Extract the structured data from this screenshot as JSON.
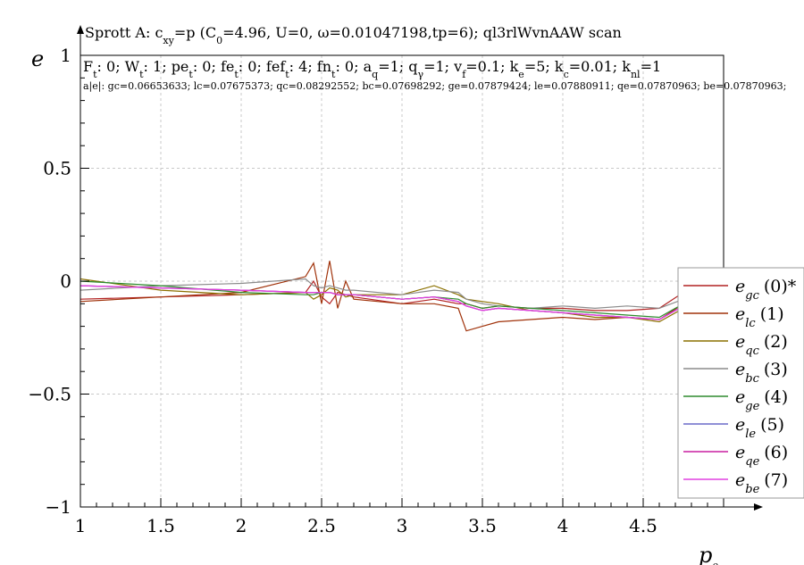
{
  "chart_data": {
    "type": "line",
    "title_parts": [
      "Sprott A: c",
      "xy",
      "=p (C",
      "0",
      "=4.96, U=0, ω=0.01047198,tp=6); ql3rlWvnAAW scan"
    ],
    "params_line": [
      [
        "F",
        "t",
        ": 0; "
      ],
      [
        "W",
        "t",
        ": 1; "
      ],
      [
        "pe",
        "t",
        ": 0; "
      ],
      [
        "fe",
        "t",
        ": 0; "
      ],
      [
        "fef",
        "t",
        ": 4; "
      ],
      [
        "fn",
        "t",
        ": 0; "
      ],
      [
        "a",
        "q",
        "=1; "
      ],
      [
        "q",
        "γ",
        "=1; "
      ],
      [
        "v",
        "f",
        "=0.1; "
      ],
      [
        "k",
        "e",
        "=5; "
      ],
      [
        "k",
        "c",
        "=0.01; "
      ],
      [
        "k",
        "nl",
        "=1"
      ]
    ],
    "errors_line": "a|e|: gc=0.06653633; lc=0.07675373; qc=0.08292552; bc=0.07698292; ge=0.07879424; le=0.07880911; qe=0.07870963; be=0.07870963;",
    "xlabel": "p",
    "xlabel_sub": "o",
    "ylabel": "e",
    "xlim": [
      1,
      5
    ],
    "ylim": [
      -1,
      1
    ],
    "xticks": [
      1,
      1.5,
      2,
      2.5,
      3,
      3.5,
      4,
      4.5
    ],
    "xtick_labels": [
      "1",
      "1.5",
      "2",
      "2.5",
      "3",
      "3.5",
      "4",
      "4.5"
    ],
    "yticks": [
      -1,
      -0.5,
      0,
      0.5,
      1
    ],
    "ytick_labels": [
      "−1",
      "−0.5",
      "0",
      "0.5",
      "1"
    ],
    "grid": true,
    "legend_position": "right",
    "x": [
      1.0,
      1.5,
      2.0,
      2.4,
      2.45,
      2.5,
      2.55,
      2.6,
      2.65,
      2.7,
      3.0,
      3.2,
      3.35,
      3.4,
      3.5,
      3.6,
      3.8,
      4.0,
      4.2,
      4.4,
      4.6,
      4.75
    ],
    "series": [
      {
        "name": "gc",
        "label": "(0)*",
        "color": "#b22222",
        "values": [
          -0.08,
          -0.07,
          -0.06,
          -0.05,
          0.0,
          -0.07,
          -0.1,
          -0.05,
          -0.06,
          -0.07,
          -0.1,
          -0.08,
          -0.1,
          -0.1,
          -0.12,
          -0.11,
          -0.12,
          -0.12,
          -0.13,
          -0.13,
          -0.12,
          -0.05
        ]
      },
      {
        "name": "lc",
        "label": "(1)",
        "color": "#a0320a",
        "values": [
          -0.09,
          -0.07,
          -0.05,
          0.02,
          0.08,
          -0.1,
          0.09,
          -0.12,
          0.0,
          -0.08,
          -0.1,
          -0.1,
          -0.12,
          -0.22,
          -0.2,
          -0.18,
          -0.17,
          -0.16,
          -0.17,
          -0.16,
          -0.17,
          -0.1
        ]
      },
      {
        "name": "qc",
        "label": "(2)",
        "color": "#8b7000",
        "values": [
          0.01,
          -0.04,
          -0.06,
          -0.05,
          -0.08,
          -0.06,
          -0.03,
          -0.04,
          -0.07,
          -0.06,
          -0.06,
          -0.02,
          -0.06,
          -0.08,
          -0.09,
          -0.1,
          -0.13,
          -0.14,
          -0.16,
          -0.16,
          -0.18,
          -0.12
        ]
      },
      {
        "name": "bc",
        "label": "(3)",
        "color": "#8c8c8c",
        "values": [
          -0.04,
          -0.02,
          -0.01,
          0.01,
          -0.02,
          -0.03,
          -0.02,
          -0.03,
          -0.04,
          -0.04,
          -0.06,
          -0.04,
          -0.05,
          -0.08,
          -0.1,
          -0.11,
          -0.12,
          -0.11,
          -0.12,
          -0.11,
          -0.12,
          -0.08
        ]
      },
      {
        "name": "ge",
        "label": "(4)",
        "color": "#2e8b2e",
        "values": [
          0.0,
          -0.02,
          -0.05,
          -0.06,
          -0.06,
          -0.05,
          -0.05,
          -0.06,
          -0.06,
          -0.06,
          -0.08,
          -0.07,
          -0.08,
          -0.1,
          -0.12,
          -0.11,
          -0.12,
          -0.13,
          -0.14,
          -0.15,
          -0.16,
          -0.1
        ]
      },
      {
        "name": "le",
        "label": "(5)",
        "color": "#6a6ac8",
        "values": [
          -0.02,
          -0.03,
          -0.04,
          -0.05,
          -0.05,
          -0.05,
          -0.05,
          -0.06,
          -0.06,
          -0.06,
          -0.08,
          -0.07,
          -0.09,
          -0.11,
          -0.13,
          -0.12,
          -0.13,
          -0.14,
          -0.15,
          -0.16,
          -0.17,
          -0.11
        ]
      },
      {
        "name": "qe",
        "label": "(6)",
        "color": "#c81ea0",
        "values": [
          -0.02,
          -0.03,
          -0.04,
          -0.05,
          -0.05,
          -0.05,
          -0.05,
          -0.06,
          -0.06,
          -0.06,
          -0.08,
          -0.07,
          -0.09,
          -0.11,
          -0.13,
          -0.12,
          -0.13,
          -0.14,
          -0.15,
          -0.16,
          -0.17,
          -0.11
        ]
      },
      {
        "name": "be",
        "label": "(7)",
        "color": "#e040e0",
        "values": [
          -0.02,
          -0.03,
          -0.04,
          -0.05,
          -0.05,
          -0.05,
          -0.05,
          -0.06,
          -0.06,
          -0.06,
          -0.08,
          -0.07,
          -0.09,
          -0.11,
          -0.13,
          -0.12,
          -0.13,
          -0.14,
          -0.15,
          -0.16,
          -0.17,
          -0.11
        ]
      }
    ]
  }
}
